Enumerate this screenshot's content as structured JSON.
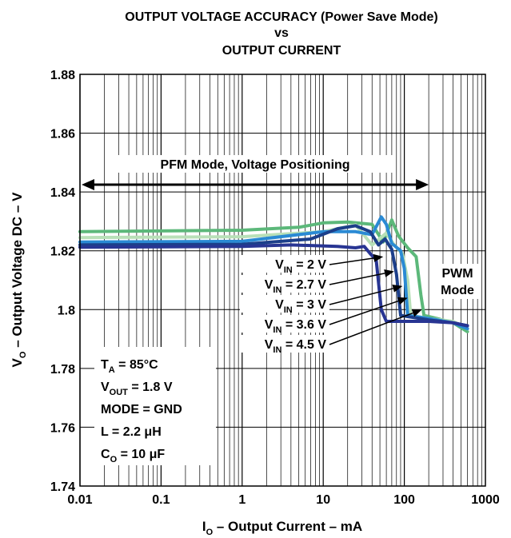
{
  "chart_data": {
    "type": "line",
    "title_lines": [
      "OUTPUT VOLTAGE ACCURACY (Power Save Mode)",
      "vs",
      "OUTPUT CURRENT"
    ],
    "xlabel": {
      "main": "I",
      "sub": "O",
      "rest": " – Output Current – mA"
    },
    "ylabel": {
      "main": "V",
      "sub": "O",
      "rest": " – Output Voltage DC – V"
    },
    "x_scale": "log",
    "xlim": [
      0.01,
      1000
    ],
    "ylim": [
      1.74,
      1.88
    ],
    "grid": true,
    "x_ticks": [
      {
        "value": 0.01,
        "label": "0.01"
      },
      {
        "value": 0.1,
        "label": "0.1"
      },
      {
        "value": 1,
        "label": "1"
      },
      {
        "value": 10,
        "label": "10"
      },
      {
        "value": 100,
        "label": "100"
      },
      {
        "value": 1000,
        "label": "1000"
      }
    ],
    "y_ticks": [
      {
        "value": 1.74,
        "label": "1.74"
      },
      {
        "value": 1.76,
        "label": "1.76"
      },
      {
        "value": 1.78,
        "label": "1.78"
      },
      {
        "value": 1.8,
        "label": "1.8"
      },
      {
        "value": 1.82,
        "label": "1.82"
      },
      {
        "value": 1.84,
        "label": "1.84"
      },
      {
        "value": 1.86,
        "label": "1.86"
      },
      {
        "value": 1.88,
        "label": "1.88"
      }
    ],
    "series": [
      {
        "name": "VIN = 4.5 V",
        "color": "#5cb87a",
        "points": [
          [
            0.01,
            1.8265
          ],
          [
            1,
            1.827
          ],
          [
            5,
            1.828
          ],
          [
            10,
            1.8295
          ],
          [
            20,
            1.8298
          ],
          [
            40,
            1.829
          ],
          [
            55,
            1.823
          ],
          [
            70,
            1.8305
          ],
          [
            85,
            1.825
          ],
          [
            110,
            1.821
          ],
          [
            140,
            1.818
          ],
          [
            160,
            1.805
          ],
          [
            175,
            1.798
          ],
          [
            250,
            1.797
          ],
          [
            400,
            1.7955
          ],
          [
            600,
            1.7925
          ]
        ]
      },
      {
        "name": "VIN = 3.6 V",
        "color": "#b8e0b8",
        "points": [
          [
            0.01,
            1.8245
          ],
          [
            1,
            1.8248
          ],
          [
            10,
            1.8265
          ],
          [
            25,
            1.8288
          ],
          [
            40,
            1.822
          ],
          [
            60,
            1.826
          ],
          [
            75,
            1.822
          ],
          [
            95,
            1.819
          ],
          [
            110,
            1.81
          ],
          [
            120,
            1.798
          ],
          [
            200,
            1.797
          ],
          [
            400,
            1.796
          ],
          [
            600,
            1.7935
          ]
        ]
      },
      {
        "name": "VIN = 3 V",
        "color": "#2a8ad4",
        "points": [
          [
            0.01,
            1.823
          ],
          [
            1,
            1.8232
          ],
          [
            10,
            1.8265
          ],
          [
            25,
            1.8265
          ],
          [
            40,
            1.8255
          ],
          [
            52,
            1.8315
          ],
          [
            60,
            1.829
          ],
          [
            70,
            1.8225
          ],
          [
            90,
            1.82
          ],
          [
            100,
            1.814
          ],
          [
            110,
            1.798
          ],
          [
            200,
            1.797
          ],
          [
            400,
            1.7955
          ],
          [
            600,
            1.7935
          ]
        ]
      },
      {
        "name": "VIN = 2.7 V",
        "color": "#1c3f8a",
        "points": [
          [
            0.01,
            1.822
          ],
          [
            1,
            1.8222
          ],
          [
            7,
            1.824
          ],
          [
            15,
            1.8275
          ],
          [
            25,
            1.8285
          ],
          [
            38,
            1.8265
          ],
          [
            48,
            1.822
          ],
          [
            58,
            1.824
          ],
          [
            70,
            1.8205
          ],
          [
            80,
            1.812
          ],
          [
            90,
            1.798
          ],
          [
            200,
            1.7965
          ],
          [
            400,
            1.7955
          ],
          [
            600,
            1.7945
          ]
        ]
      },
      {
        "name": "VIN = 2 V",
        "color": "#283593",
        "points": [
          [
            0.01,
            1.8212
          ],
          [
            1,
            1.8215
          ],
          [
            4,
            1.822
          ],
          [
            15,
            1.8215
          ],
          [
            25,
            1.821
          ],
          [
            32,
            1.8215
          ],
          [
            38,
            1.819
          ],
          [
            45,
            1.817
          ],
          [
            52,
            1.8
          ],
          [
            60,
            1.796
          ],
          [
            200,
            1.796
          ],
          [
            400,
            1.7955
          ],
          [
            600,
            1.7945
          ]
        ]
      }
    ],
    "annotations": {
      "pfm_arrow": {
        "label": "PFM Mode, Voltage Positioning",
        "x_from": 0.01,
        "x_to": 200,
        "y": 1.8425
      },
      "pwm_mode": [
        "PWM",
        "Mode"
      ],
      "vin_labels": [
        {
          "main": "V",
          "sub": "IN",
          "rest": " = 2 V",
          "target": [
            55,
            1.818
          ]
        },
        {
          "main": "V",
          "sub": "IN",
          "rest": " = 2.7 V",
          "target": [
            75,
            1.813
          ]
        },
        {
          "main": "V",
          "sub": "IN",
          "rest": " = 3 V",
          "target": [
            95,
            1.808
          ]
        },
        {
          "main": "V",
          "sub": "IN",
          "rest": " = 3.6 V",
          "target": [
            110,
            1.804
          ]
        },
        {
          "main": "V",
          "sub": "IN",
          "rest": " = 4.5 V",
          "target": [
            165,
            1.8
          ]
        }
      ],
      "conditions": [
        {
          "main": "T",
          "sub": "A",
          "rest": " = 85°C"
        },
        {
          "main": "V",
          "sub": "OUT",
          "rest": " = 1.8 V"
        },
        {
          "main": "MODE = GND",
          "sub": "",
          "rest": ""
        },
        {
          "main": "L = 2.2 ",
          "sub": "",
          "rest": "μH"
        },
        {
          "main": "C",
          "sub": "O",
          "rest": " = 10 μF"
        }
      ]
    }
  }
}
